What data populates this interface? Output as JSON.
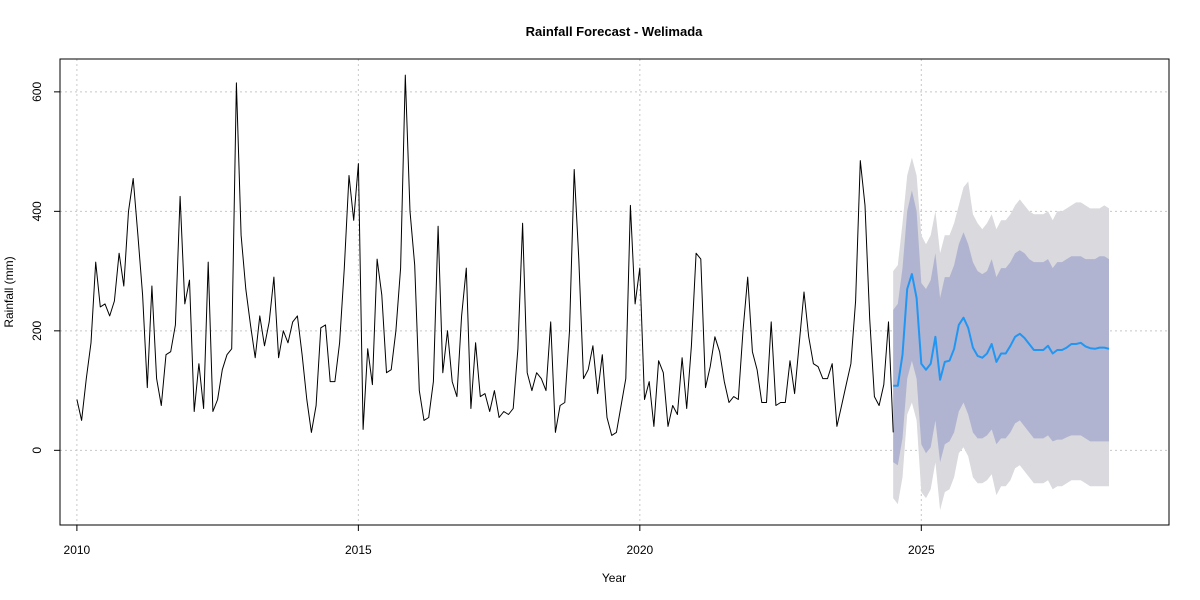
{
  "chart_data": {
    "type": "line",
    "title": "Rainfall Forecast - Welimada",
    "xlabel": "Year",
    "ylabel": "Rainfall (mm)",
    "xlim": [
      2009.7,
      2029.4
    ],
    "ylim": [
      -125,
      655
    ],
    "x_ticks": [
      2010,
      2015,
      2020,
      2025
    ],
    "x_tick_labels": [
      "2010",
      "2015",
      "2020",
      "2025"
    ],
    "y_ticks": [
      0,
      200,
      400,
      600
    ],
    "y_tick_labels": [
      "0",
      "200",
      "400",
      "600"
    ],
    "grid": true,
    "colors": {
      "history": "#000000",
      "forecast": "#2196f3",
      "band80": "#b0b4d0",
      "band95": "#d9d9de"
    },
    "series": [
      {
        "role": "history",
        "start": 2010.0,
        "step": 0.0833333,
        "values": [
          85,
          50,
          120,
          180,
          315,
          240,
          245,
          225,
          250,
          330,
          275,
          400,
          455,
          360,
          260,
          105,
          275,
          120,
          75,
          160,
          165,
          210,
          425,
          245,
          285,
          65,
          145,
          70,
          315,
          65,
          85,
          135,
          160,
          170,
          615,
          360,
          270,
          210,
          155,
          225,
          175,
          215,
          290,
          155,
          200,
          180,
          215,
          225,
          160,
          85,
          30,
          75,
          205,
          210,
          115,
          115,
          180,
          305,
          460,
          385,
          480,
          35,
          170,
          110,
          320,
          260,
          130,
          135,
          200,
          305,
          628,
          400,
          310,
          100,
          50,
          55,
          115,
          375,
          130,
          200,
          115,
          90,
          225,
          305,
          70,
          180,
          90,
          95,
          65,
          100,
          55,
          65,
          60,
          70,
          170,
          380,
          130,
          100,
          130,
          120,
          100,
          215,
          30,
          75,
          80,
          200,
          470,
          320,
          120,
          135,
          175,
          95,
          160,
          55,
          25,
          30,
          75,
          120,
          410,
          245,
          305,
          85,
          115,
          40,
          150,
          130,
          40,
          75,
          60,
          155,
          70,
          175,
          330,
          320,
          105,
          140,
          190,
          165,
          115,
          80,
          90,
          85,
          200,
          290,
          165,
          135,
          80,
          80,
          215,
          75,
          80,
          80,
          150,
          95,
          180,
          265,
          190,
          145,
          140,
          120,
          120,
          145,
          40,
          75,
          110,
          145,
          250,
          485,
          410,
          220,
          90,
          75,
          110,
          215,
          30
        ]
      },
      {
        "role": "forecast",
        "start": 2024.5,
        "step": 0.0833333,
        "values": [
          108,
          108,
          160,
          270,
          295,
          255,
          145,
          135,
          145,
          190,
          118,
          148,
          150,
          170,
          210,
          222,
          205,
          172,
          158,
          155,
          162,
          178,
          148,
          162,
          162,
          175,
          190,
          195,
          188,
          178,
          168,
          168,
          168,
          175,
          162,
          168,
          168,
          172,
          178,
          178,
          180,
          174,
          171,
          170,
          172,
          172,
          170
        ],
        "lo80": [
          -20,
          -25,
          20,
          120,
          150,
          120,
          10,
          -5,
          5,
          50,
          -20,
          10,
          15,
          30,
          65,
          80,
          60,
          30,
          20,
          20,
          25,
          35,
          10,
          20,
          20,
          30,
          45,
          50,
          40,
          30,
          20,
          20,
          20,
          25,
          15,
          18,
          18,
          22,
          25,
          25,
          25,
          20,
          15,
          15,
          15,
          15,
          15
        ],
        "hi80": [
          235,
          245,
          305,
          400,
          435,
          400,
          280,
          270,
          285,
          330,
          255,
          290,
          290,
          310,
          345,
          365,
          345,
          315,
          300,
          295,
          300,
          320,
          290,
          305,
          305,
          315,
          330,
          335,
          330,
          320,
          315,
          315,
          315,
          320,
          305,
          315,
          315,
          320,
          325,
          325,
          325,
          320,
          320,
          320,
          325,
          325,
          320
        ],
        "lo95": [
          -80,
          -90,
          -45,
          60,
          80,
          50,
          -70,
          -80,
          -65,
          -20,
          -100,
          -70,
          -65,
          -45,
          -5,
          5,
          -10,
          -45,
          -55,
          -55,
          -50,
          -40,
          -75,
          -60,
          -60,
          -50,
          -30,
          -25,
          -35,
          -45,
          -55,
          -55,
          -55,
          -50,
          -65,
          -60,
          -60,
          -55,
          -50,
          -50,
          -50,
          -55,
          -60,
          -60,
          -60,
          -60,
          -60
        ],
        "hi95": [
          300,
          310,
          380,
          460,
          490,
          460,
          360,
          345,
          360,
          400,
          330,
          360,
          360,
          380,
          410,
          440,
          450,
          395,
          380,
          370,
          380,
          395,
          370,
          385,
          385,
          395,
          410,
          420,
          410,
          400,
          395,
          395,
          395,
          400,
          385,
          400,
          400,
          405,
          410,
          415,
          415,
          410,
          405,
          405,
          405,
          410,
          405
        ]
      }
    ]
  }
}
